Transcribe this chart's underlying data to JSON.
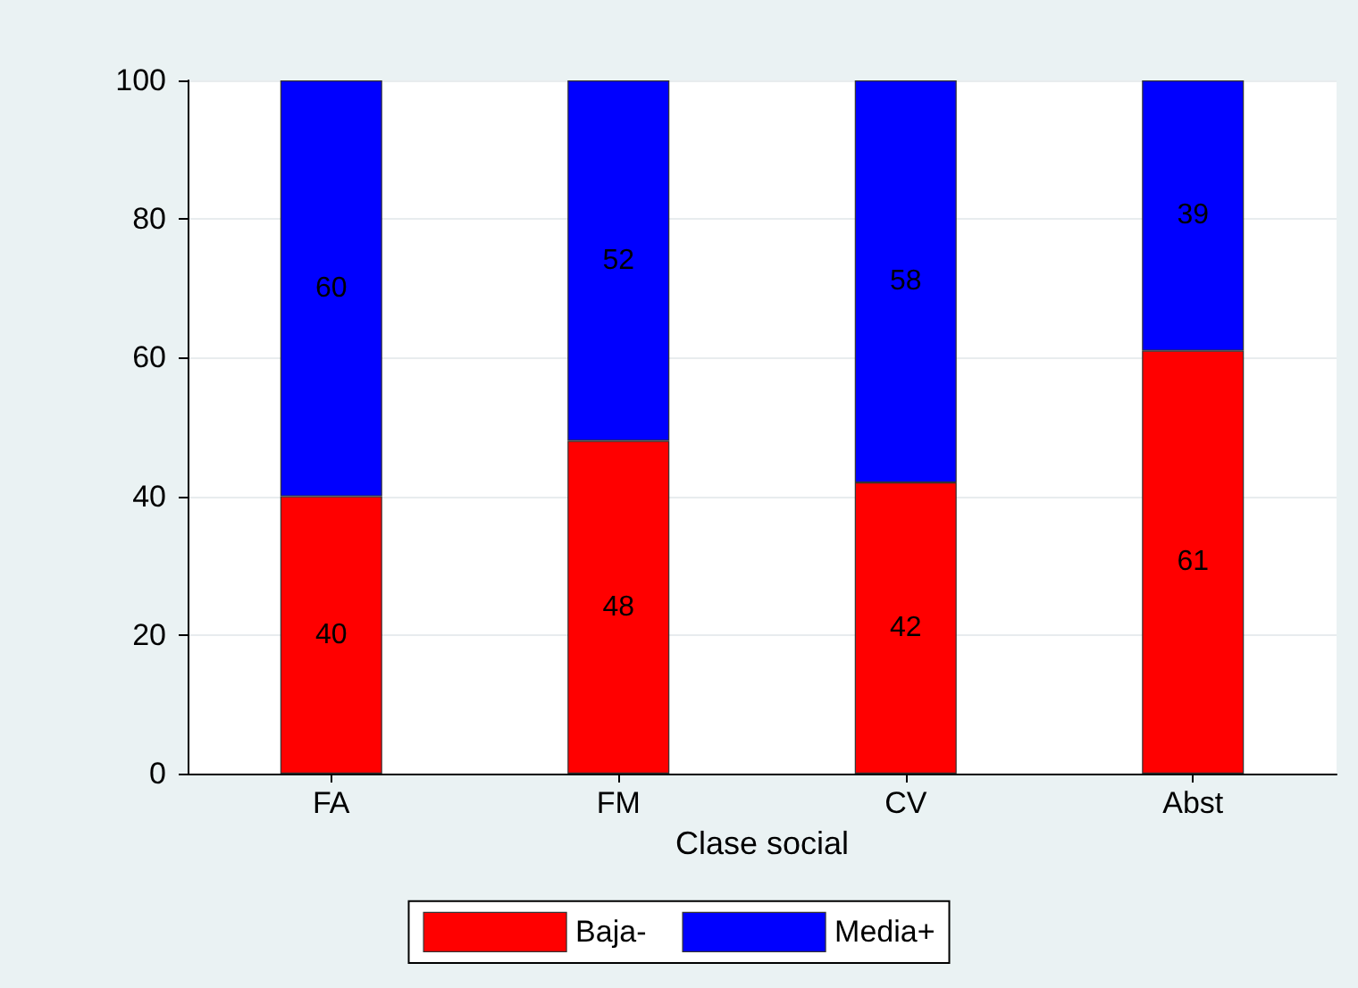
{
  "chart_data": {
    "type": "bar",
    "xlabel": "Clase social",
    "categories": [
      "FA",
      "FM",
      "CV",
      "Abst"
    ],
    "series": [
      {
        "name": "Baja-",
        "color": "#ff0000",
        "values": [
          40,
          48,
          42,
          61
        ]
      },
      {
        "name": "Media+",
        "color": "#0000ff",
        "values": [
          60,
          52,
          58,
          39
        ]
      }
    ],
    "stacked": true,
    "data_labels": true,
    "ylim": [
      0,
      100
    ],
    "yticks": [
      0,
      20,
      40,
      60,
      80,
      100
    ],
    "grid": "y",
    "legend": "bottom"
  }
}
